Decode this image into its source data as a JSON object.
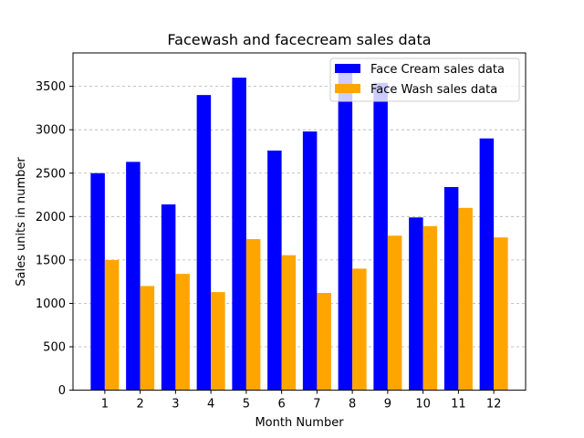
{
  "chart_data": {
    "type": "bar",
    "title": "Facewash and facecream sales data",
    "xlabel": "Month Number",
    "ylabel": "Sales units in number",
    "categories": [
      "1",
      "2",
      "3",
      "4",
      "5",
      "6",
      "7",
      "8",
      "9",
      "10",
      "11",
      "12"
    ],
    "series": [
      {
        "name": "Face Cream sales data",
        "color": "#0000ff",
        "values": [
          2500,
          2630,
          2140,
          3400,
          3600,
          2760,
          2980,
          3700,
          3540,
          1990,
          2340,
          2900
        ]
      },
      {
        "name": "Face Wash sales data",
        "color": "#ffa500",
        "values": [
          1500,
          1200,
          1340,
          1130,
          1740,
          1555,
          1120,
          1400,
          1780,
          1890,
          2100,
          1760
        ]
      }
    ],
    "yticks": [
      0,
      500,
      1000,
      1500,
      2000,
      2500,
      3000,
      3500
    ],
    "ylim": [
      0,
      3885
    ],
    "grid": {
      "y": true,
      "style": "dashed"
    },
    "legend": {
      "placement": "upper-right"
    }
  }
}
